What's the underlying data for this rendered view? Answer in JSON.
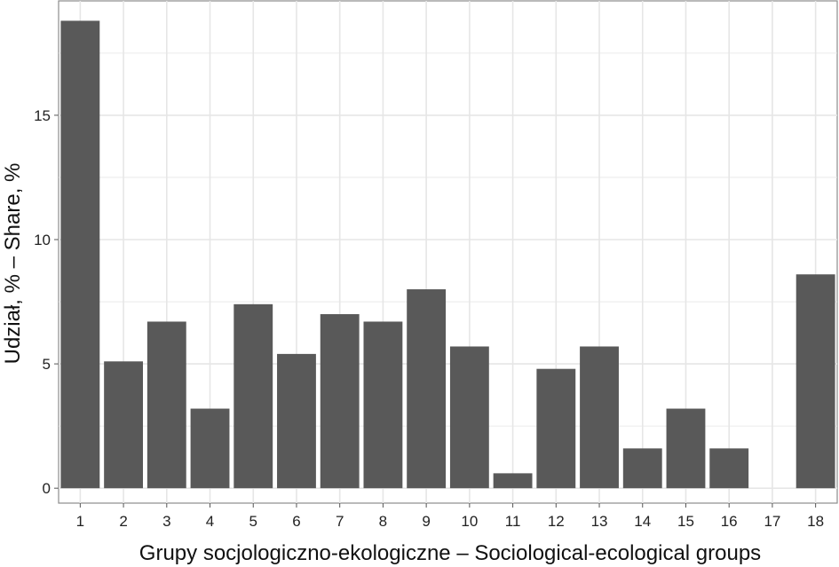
{
  "chart_data": {
    "type": "bar",
    "title": "",
    "xlabel": "Grupy socjologiczno-ekologiczne – Sociological-ecological groups",
    "ylabel": "Udział, % – Share, %",
    "categories": [
      "1",
      "2",
      "3",
      "4",
      "5",
      "6",
      "7",
      "8",
      "9",
      "10",
      "11",
      "12",
      "13",
      "14",
      "15",
      "16",
      "17",
      "18"
    ],
    "values": [
      18.8,
      5.1,
      6.7,
      3.2,
      7.4,
      5.4,
      7.0,
      6.7,
      8.0,
      5.7,
      0.6,
      4.8,
      5.7,
      1.6,
      3.2,
      1.6,
      0.0,
      8.6
    ],
    "ylim": [
      -0.6,
      19.6
    ],
    "yticks": [
      0,
      5,
      10,
      15
    ],
    "ytick_labels": [
      "0",
      "5",
      "10",
      "15"
    ],
    "grid": true,
    "bar_color": "#595959",
    "grid_color": "#e6e6e6",
    "panel_border_color": "#8c8c8c"
  }
}
